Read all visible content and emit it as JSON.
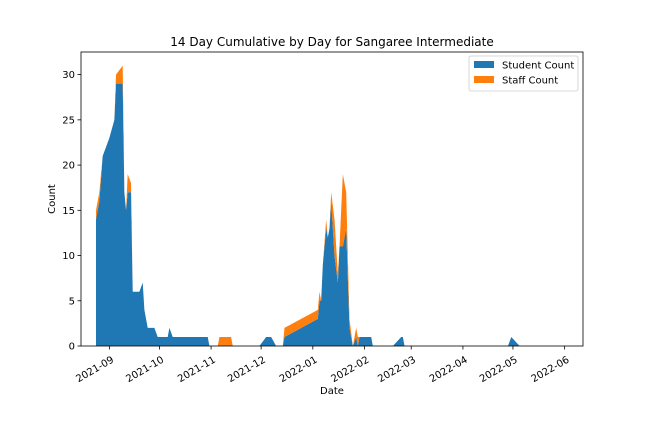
{
  "chart_data": {
    "type": "area",
    "stacked": true,
    "title": "14 Day Cumulative by Day for Sangaree Intermediate",
    "xlabel": "Date",
    "ylabel": "Count",
    "ylim": [
      0,
      32.5
    ],
    "yticks": [
      0,
      5,
      10,
      15,
      20,
      25,
      30
    ],
    "xlim": [
      "2021-08-15",
      "2022-06-12"
    ],
    "xticks": [
      "2021-09-01",
      "2021-10-01",
      "2021-11-01",
      "2021-12-01",
      "2022-01-01",
      "2022-02-01",
      "2022-03-01",
      "2022-04-01",
      "2022-05-01",
      "2022-06-01"
    ],
    "xtick_labels": [
      "2021-09",
      "2021-10",
      "2021-11",
      "2021-12",
      "2022-01",
      "2022-02",
      "2022-03",
      "2022-04",
      "2022-05",
      "2022-06"
    ],
    "legend_position": "top-right",
    "grid": false,
    "series": [
      {
        "name": "Student Count",
        "color": "#1f77b4",
        "points": [
          [
            "2021-08-24",
            14
          ],
          [
            "2021-08-26",
            16
          ],
          [
            "2021-08-28",
            21
          ],
          [
            "2021-09-01",
            23
          ],
          [
            "2021-09-04",
            25
          ],
          [
            "2021-09-05",
            29
          ],
          [
            "2021-09-09",
            29
          ],
          [
            "2021-09-10",
            17
          ],
          [
            "2021-09-11",
            15
          ],
          [
            "2021-09-12",
            17
          ],
          [
            "2021-09-14",
            17
          ],
          [
            "2021-09-15",
            6
          ],
          [
            "2021-09-19",
            6
          ],
          [
            "2021-09-21",
            7
          ],
          [
            "2021-09-22",
            4
          ],
          [
            "2021-09-24",
            2
          ],
          [
            "2021-09-28",
            2
          ],
          [
            "2021-09-30",
            1
          ],
          [
            "2021-10-06",
            1
          ],
          [
            "2021-10-07",
            2
          ],
          [
            "2021-10-09",
            1
          ],
          [
            "2021-10-30",
            1
          ],
          [
            "2021-10-31",
            0
          ],
          [
            "2021-11-05",
            0
          ],
          [
            "2021-11-06",
            0
          ],
          [
            "2021-11-13",
            0
          ],
          [
            "2021-11-14",
            0
          ],
          [
            "2021-11-30",
            0
          ],
          [
            "2021-12-04",
            1
          ],
          [
            "2021-12-07",
            1
          ],
          [
            "2021-12-10",
            0
          ],
          [
            "2021-12-14",
            0
          ],
          [
            "2021-12-15",
            1
          ],
          [
            "2022-01-04",
            3
          ],
          [
            "2022-01-05",
            5
          ],
          [
            "2022-01-06",
            5
          ],
          [
            "2022-01-07",
            9
          ],
          [
            "2022-01-09",
            13
          ],
          [
            "2022-01-10",
            12
          ],
          [
            "2022-01-11",
            13
          ],
          [
            "2022-01-12",
            16
          ],
          [
            "2022-01-14",
            10
          ],
          [
            "2022-01-16",
            7
          ],
          [
            "2022-01-17",
            11
          ],
          [
            "2022-01-19",
            11
          ],
          [
            "2022-01-21",
            13
          ],
          [
            "2022-01-23",
            2
          ],
          [
            "2022-01-25",
            0
          ],
          [
            "2022-01-27",
            1
          ],
          [
            "2022-01-28",
            0
          ],
          [
            "2022-01-29",
            1
          ],
          [
            "2022-02-05",
            1
          ],
          [
            "2022-02-06",
            0
          ],
          [
            "2022-02-18",
            0
          ],
          [
            "2022-02-23",
            1
          ],
          [
            "2022-02-24",
            1
          ],
          [
            "2022-02-25",
            0
          ],
          [
            "2022-04-28",
            0
          ],
          [
            "2022-04-30",
            1
          ],
          [
            "2022-05-05",
            0
          ],
          [
            "2022-06-01",
            0
          ]
        ]
      },
      {
        "name": "Staff Count",
        "color": "#ff7f0e",
        "points": [
          [
            "2021-08-24",
            1
          ],
          [
            "2021-08-26",
            1
          ],
          [
            "2021-08-28",
            0
          ],
          [
            "2021-09-01",
            0
          ],
          [
            "2021-09-04",
            0
          ],
          [
            "2021-09-05",
            1
          ],
          [
            "2021-09-09",
            2
          ],
          [
            "2021-09-10",
            0
          ],
          [
            "2021-09-11",
            0
          ],
          [
            "2021-09-12",
            2
          ],
          [
            "2021-09-14",
            1
          ],
          [
            "2021-09-15",
            0
          ],
          [
            "2021-09-19",
            0
          ],
          [
            "2021-09-21",
            0
          ],
          [
            "2021-09-22",
            0
          ],
          [
            "2021-09-24",
            0
          ],
          [
            "2021-09-28",
            0
          ],
          [
            "2021-09-30",
            0
          ],
          [
            "2021-10-06",
            0
          ],
          [
            "2021-10-07",
            0
          ],
          [
            "2021-10-09",
            0
          ],
          [
            "2021-10-30",
            0
          ],
          [
            "2021-10-31",
            0
          ],
          [
            "2021-11-05",
            0
          ],
          [
            "2021-11-06",
            1
          ],
          [
            "2021-11-13",
            1
          ],
          [
            "2021-11-14",
            0
          ],
          [
            "2021-11-30",
            0
          ],
          [
            "2021-12-04",
            0
          ],
          [
            "2021-12-07",
            0
          ],
          [
            "2021-12-10",
            0
          ],
          [
            "2021-12-14",
            0
          ],
          [
            "2021-12-15",
            1
          ],
          [
            "2022-01-04",
            1
          ],
          [
            "2022-01-05",
            1
          ],
          [
            "2022-01-06",
            0
          ],
          [
            "2022-01-07",
            0
          ],
          [
            "2022-01-09",
            1
          ],
          [
            "2022-01-10",
            0
          ],
          [
            "2022-01-11",
            0
          ],
          [
            "2022-01-12",
            1
          ],
          [
            "2022-01-14",
            4
          ],
          [
            "2022-01-16",
            1
          ],
          [
            "2022-01-17",
            0
          ],
          [
            "2022-01-19",
            8
          ],
          [
            "2022-01-21",
            4
          ],
          [
            "2022-01-23",
            1
          ],
          [
            "2022-01-25",
            0
          ],
          [
            "2022-01-27",
            1
          ],
          [
            "2022-01-28",
            1
          ],
          [
            "2022-01-29",
            0
          ],
          [
            "2022-02-05",
            0
          ],
          [
            "2022-02-06",
            0
          ],
          [
            "2022-02-18",
            0
          ],
          [
            "2022-02-23",
            0
          ],
          [
            "2022-02-24",
            0
          ],
          [
            "2022-02-25",
            0
          ],
          [
            "2022-04-28",
            0
          ],
          [
            "2022-04-30",
            0
          ],
          [
            "2022-05-05",
            0
          ],
          [
            "2022-06-01",
            0
          ]
        ]
      }
    ]
  }
}
